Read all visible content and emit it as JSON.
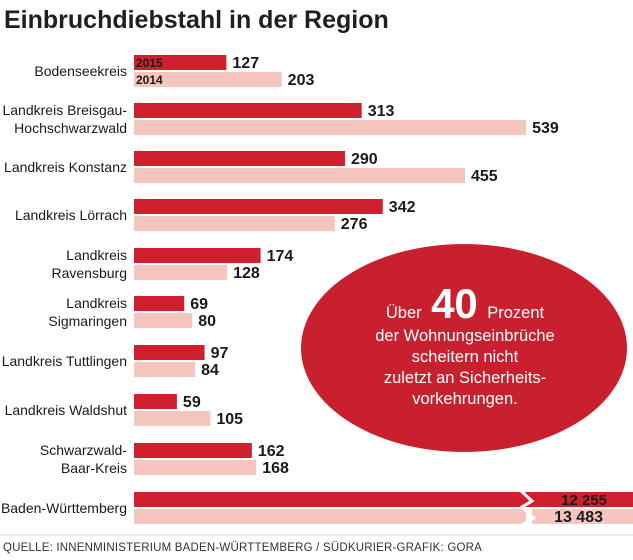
{
  "chart_data": {
    "type": "bar",
    "title": "Einbruchdiebstahl in der Region",
    "categories": [
      [
        "Bodenseekreis"
      ],
      [
        "Landkreis Breisgau-",
        "Hochschwarzwald"
      ],
      [
        "Landkreis Konstanz"
      ],
      [
        "Landkreis Lörrach"
      ],
      [
        "Landkreis",
        "Ravensburg"
      ],
      [
        "Landkreis",
        "Sigmaringen"
      ],
      [
        "Landkreis Tuttlingen"
      ],
      [
        "Landkreis Waldshut"
      ],
      [
        "Schwarzwald-",
        "Baar-Kreis"
      ],
      [
        "Baden-Württemberg"
      ]
    ],
    "series": [
      {
        "name": "2015",
        "color": "#d0202e",
        "values": [
          127,
          313,
          290,
          342,
          174,
          69,
          97,
          59,
          162,
          12255
        ]
      },
      {
        "name": "2014",
        "color": "#f4c6bd",
        "values": [
          203,
          539,
          455,
          276,
          128,
          80,
          84,
          105,
          168,
          13483
        ]
      }
    ],
    "value_labels": {
      "2015": [
        "127",
        "313",
        "290",
        "342",
        "174",
        "69",
        "97",
        "59",
        "162",
        "12 255"
      ],
      "2014": [
        "203",
        "539",
        "455",
        "276",
        "128",
        "80",
        "84",
        "105",
        "168",
        "13 483"
      ]
    },
    "axis_break_on_last_category": true,
    "legend_placement": "inside-first-bars"
  },
  "callout": {
    "pre": "Über",
    "number": "40",
    "post": "Prozent",
    "lines": [
      "der Wohnungseinbrüche",
      "scheitern nicht",
      "zuletzt an Sicherheits-",
      "vorkehrungen."
    ],
    "color": "#c8202e"
  },
  "source": "QUELLE: INNENMINISTERIUM BADEN-WÜRTTEMBERG / SÜDKURIER-GRAFIK: GORA"
}
